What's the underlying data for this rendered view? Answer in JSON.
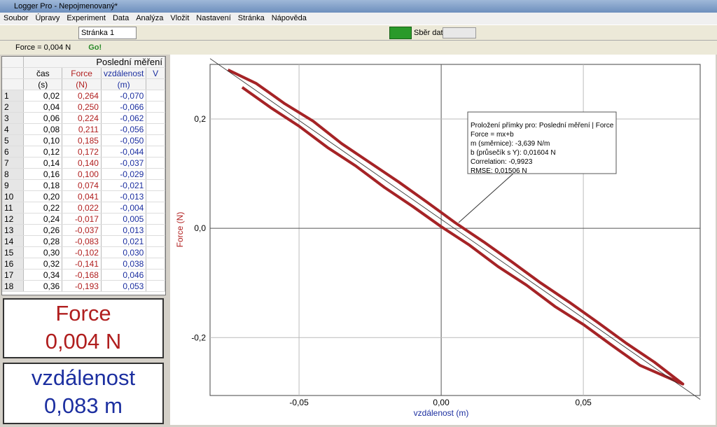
{
  "window": {
    "title": "Logger Pro - Nepojmenovaný*"
  },
  "menu": [
    "Soubor",
    "Úpravy",
    "Experiment",
    "Data",
    "Analýza",
    "Vložit",
    "Nastavení",
    "Stránka",
    "Nápověda"
  ],
  "toolbar": {
    "page": "Stránka 1",
    "collect": "Sběr dat"
  },
  "status": {
    "sensor": "Force = 0,004 N",
    "go": "Go!"
  },
  "table": {
    "title": "Poslední měření",
    "columns": [
      {
        "name": "čas",
        "unit": "(s)"
      },
      {
        "name": "Force",
        "unit": "(N)"
      },
      {
        "name": "vzdálenost",
        "unit": "(m)"
      },
      {
        "name": "V"
      }
    ],
    "rows": [
      [
        "1",
        "0,02",
        "0,264",
        "-0,070"
      ],
      [
        "2",
        "0,04",
        "0,250",
        "-0,066"
      ],
      [
        "3",
        "0,06",
        "0,224",
        "-0,062"
      ],
      [
        "4",
        "0,08",
        "0,211",
        "-0,056"
      ],
      [
        "5",
        "0,10",
        "0,185",
        "-0,050"
      ],
      [
        "6",
        "0,12",
        "0,172",
        "-0,044"
      ],
      [
        "7",
        "0,14",
        "0,140",
        "-0,037"
      ],
      [
        "8",
        "0,16",
        "0,100",
        "-0,029"
      ],
      [
        "9",
        "0,18",
        "0,074",
        "-0,021"
      ],
      [
        "10",
        "0,20",
        "0,041",
        "-0,013"
      ],
      [
        "11",
        "0,22",
        "0,022",
        "-0,004"
      ],
      [
        "12",
        "0,24",
        "-0,017",
        "0,005"
      ],
      [
        "13",
        "0,26",
        "-0,037",
        "0,013"
      ],
      [
        "14",
        "0,28",
        "-0,083",
        "0,021"
      ],
      [
        "15",
        "0,30",
        "-0,102",
        "0,030"
      ],
      [
        "16",
        "0,32",
        "-0,141",
        "0,038"
      ],
      [
        "17",
        "0,34",
        "-0,168",
        "0,046"
      ],
      [
        "18",
        "0,36",
        "-0,193",
        "0,053"
      ]
    ]
  },
  "meters": [
    {
      "label": "Force",
      "value": "0,004 N"
    },
    {
      "label": "vzdálenost",
      "value": "0,083 m"
    }
  ],
  "graph": {
    "type": "line",
    "x_label": "vzdálenost (m)",
    "y_label": "Force (N)",
    "xlim": [
      -0.0813,
      0.0911
    ],
    "ylim": [
      -0.306,
      0.3
    ],
    "xticks": [
      {
        "value": -0.05,
        "label": "-0,05"
      },
      {
        "value": 0,
        "label": "0,00"
      },
      {
        "value": 0.05,
        "label": "0,05"
      }
    ],
    "yticks": [
      {
        "value": 0.2,
        "label": "0,2"
      },
      {
        "value": 0,
        "label": "0,0"
      },
      {
        "value": -0.2,
        "label": "-0,2"
      }
    ],
    "grid": true,
    "color": "#a52326",
    "x": [
      -0.075,
      -0.065,
      -0.055,
      -0.045,
      -0.035,
      -0.025,
      -0.015,
      -0.005,
      0.005,
      0.015,
      0.025,
      0.035,
      0.045,
      0.055,
      0.065,
      0.075,
      0.085,
      0.07,
      0.06,
      0.05,
      0.04,
      0.03,
      0.02,
      0.01,
      0,
      -0.01,
      -0.02,
      -0.03,
      -0.04,
      -0.05,
      -0.06,
      -0.07
    ],
    "y": [
      0.29,
      0.265,
      0.228,
      0.196,
      0.155,
      0.12,
      0.085,
      0.048,
      0.01,
      -0.025,
      -0.062,
      -0.1,
      -0.135,
      -0.172,
      -0.21,
      -0.245,
      -0.285,
      -0.251,
      -0.214,
      -0.176,
      -0.143,
      -0.104,
      -0.07,
      -0.031,
      0.003,
      0.04,
      0.075,
      0.114,
      0.148,
      0.187,
      0.221,
      0.258
    ],
    "fit_box": [
      "Proložení přímky pro: Poslední měření | Force",
      "Force = mx+b",
      "m (směrnice): -3,639 N/m",
      "b (průsečík s Y): 0,01604 N",
      "Correlation: -0,9923",
      "RMSE: 0,01506 N"
    ]
  }
}
